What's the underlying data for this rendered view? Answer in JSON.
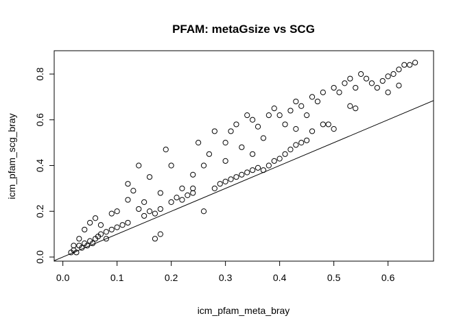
{
  "chart_data": {
    "type": "scatter",
    "title": "PFAM: metaGsize vs SCG",
    "x_label": "icm_pfam_meta_bray",
    "y_label": "icm_pfam_scg_bray",
    "xlim": [
      -0.016,
      0.684
    ],
    "ylim": [
      -0.018,
      0.902
    ],
    "xticks": [
      {
        "value": 0,
        "label": "0.0"
      },
      0.1,
      0.2,
      0.3,
      0.4,
      0.5,
      0.6
    ],
    "yticks": [
      {
        "value": 0,
        "label": "0.0"
      },
      0.2,
      0.4,
      0.6,
      0.8
    ],
    "color": "#000000",
    "reference_line": {
      "intercept": 0,
      "slope": 1
    },
    "x": [
      0.015,
      0.02,
      0.025,
      0.03,
      0.035,
      0.04,
      0.045,
      0.05,
      0.055,
      0.06,
      0.065,
      0.07,
      0.03,
      0.04,
      0.05,
      0.06,
      0.07,
      0.08,
      0.09,
      0.1,
      0.11,
      0.12,
      0.1,
      0.12,
      0.13,
      0.14,
      0.15,
      0.16,
      0.17,
      0.18,
      0.17,
      0.18,
      0.16,
      0.18,
      0.19,
      0.2,
      0.21,
      0.22,
      0.23,
      0.24,
      0.22,
      0.24,
      0.26,
      0.25,
      0.27,
      0.28,
      0.29,
      0.3,
      0.31,
      0.32,
      0.33,
      0.34,
      0.35,
      0.36,
      0.37,
      0.38,
      0.39,
      0.4,
      0.41,
      0.42,
      0.43,
      0.44,
      0.45,
      0.28,
      0.3,
      0.31,
      0.32,
      0.34,
      0.35,
      0.36,
      0.37,
      0.38,
      0.39,
      0.4,
      0.41,
      0.42,
      0.43,
      0.44,
      0.45,
      0.46,
      0.47,
      0.48,
      0.49,
      0.5,
      0.5,
      0.51,
      0.52,
      0.53,
      0.54,
      0.53,
      0.54,
      0.55,
      0.56,
      0.57,
      0.58,
      0.59,
      0.6,
      0.61,
      0.62,
      0.63,
      0.64,
      0.65,
      0.62,
      0.6,
      0.46,
      0.48,
      0.43,
      0.3,
      0.33,
      0.35,
      0.26,
      0.24,
      0.14,
      0.12,
      0.2,
      0.15,
      0.09,
      0.08,
      0.02
    ],
    "y": [
      0.02,
      0.03,
      0.02,
      0.05,
      0.04,
      0.06,
      0.05,
      0.07,
      0.06,
      0.08,
      0.09,
      0.1,
      0.08,
      0.12,
      0.15,
      0.17,
      0.14,
      0.11,
      0.12,
      0.13,
      0.14,
      0.15,
      0.2,
      0.25,
      0.29,
      0.21,
      0.18,
      0.2,
      0.19,
      0.21,
      0.08,
      0.1,
      0.35,
      0.28,
      0.47,
      0.24,
      0.26,
      0.25,
      0.27,
      0.28,
      0.3,
      0.36,
      0.4,
      0.5,
      0.45,
      0.3,
      0.32,
      0.33,
      0.34,
      0.35,
      0.36,
      0.37,
      0.38,
      0.39,
      0.38,
      0.4,
      0.42,
      0.43,
      0.45,
      0.47,
      0.49,
      0.5,
      0.51,
      0.55,
      0.5,
      0.55,
      0.58,
      0.62,
      0.6,
      0.57,
      0.52,
      0.62,
      0.65,
      0.62,
      0.58,
      0.64,
      0.68,
      0.66,
      0.62,
      0.7,
      0.68,
      0.72,
      0.58,
      0.56,
      0.74,
      0.72,
      0.76,
      0.66,
      0.65,
      0.78,
      0.74,
      0.8,
      0.78,
      0.76,
      0.74,
      0.77,
      0.79,
      0.8,
      0.82,
      0.84,
      0.84,
      0.85,
      0.75,
      0.72,
      0.55,
      0.58,
      0.56,
      0.42,
      0.48,
      0.45,
      0.2,
      0.3,
      0.4,
      0.32,
      0.4,
      0.24,
      0.19,
      0.08,
      0.05
    ]
  }
}
